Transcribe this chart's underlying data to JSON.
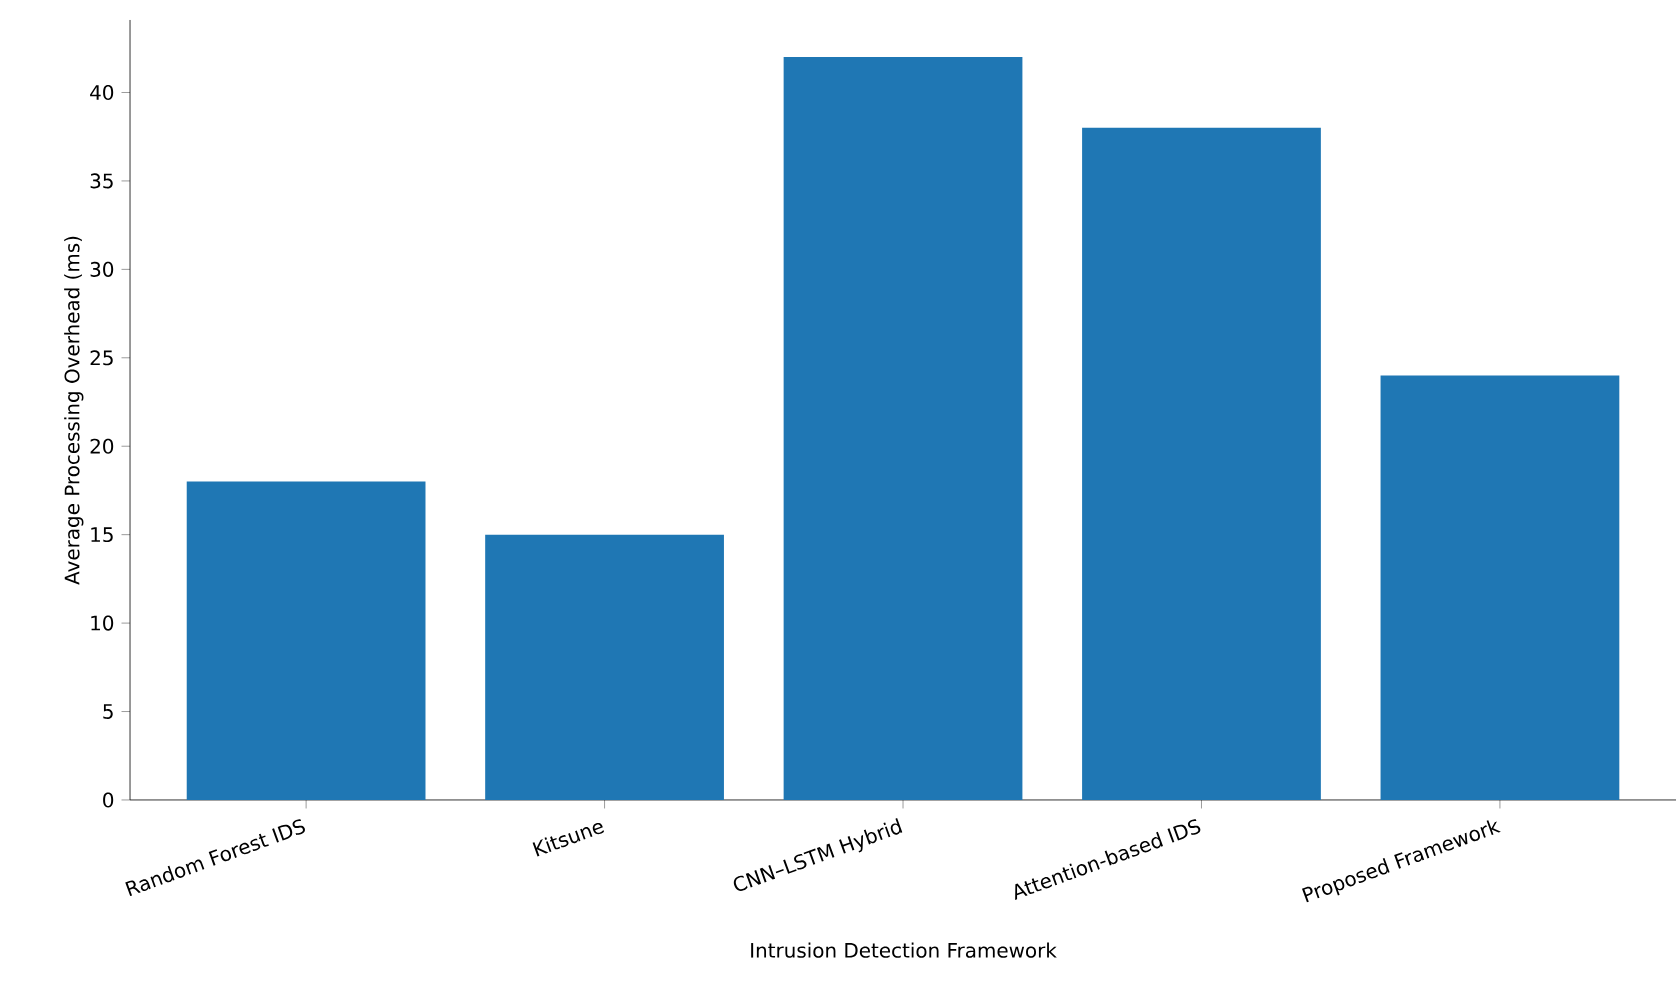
{
  "chart_data": {
    "type": "bar",
    "xlabel": "Intrusion Detection Framework",
    "ylabel": "Average Processing Overhead (ms)",
    "categories": [
      "Random Forest IDS",
      "Kitsune",
      "CNN–LSTM Hybrid",
      "Attention-based IDS",
      "Proposed Framework"
    ],
    "values": [
      18,
      15,
      42,
      38,
      24
    ],
    "color": "#1f77b4",
    "ylim": [
      0,
      44.1
    ],
    "yticks": [
      0,
      5,
      10,
      15,
      20,
      25,
      30,
      35,
      40
    ]
  }
}
